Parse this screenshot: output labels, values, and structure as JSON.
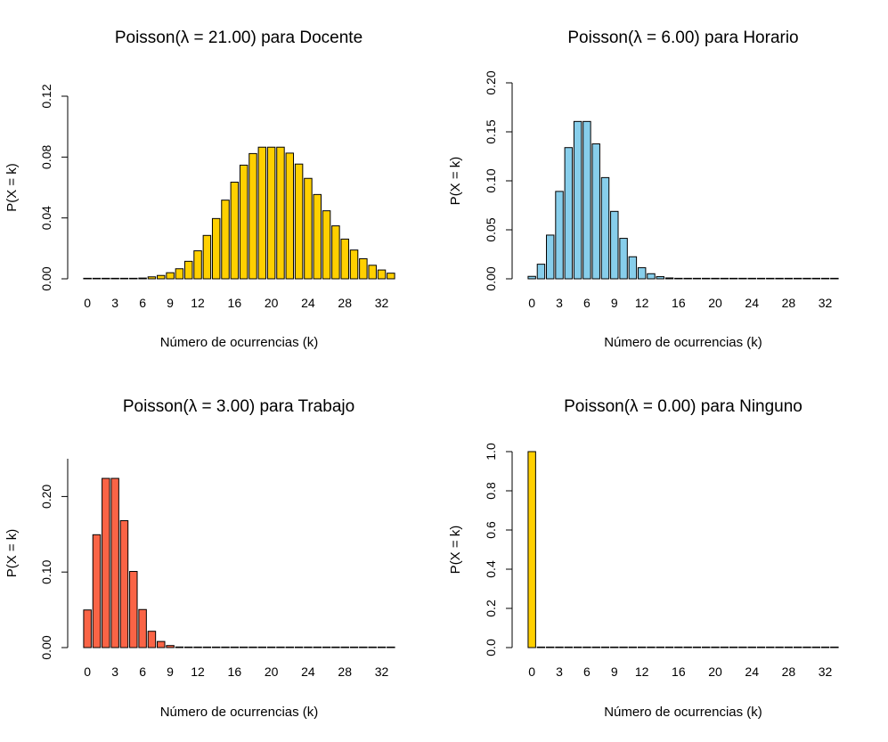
{
  "chart_data": [
    {
      "type": "bar",
      "title": "Poisson(λ = 21.00) para Docente",
      "xlabel": "Número de ocurrencias (k)",
      "ylabel": "P(X = k)",
      "color": "#FFD000",
      "ylim": [
        0,
        0.12
      ],
      "yticks": [
        "0.00",
        "0.04",
        "0.08",
        "0.12"
      ],
      "xticks": [
        "0",
        "3",
        "6",
        "9",
        "12",
        "16",
        "20",
        "24",
        "28",
        "32"
      ],
      "categories": [
        0,
        1,
        2,
        3,
        4,
        5,
        6,
        7,
        8,
        9,
        10,
        11,
        12,
        13,
        14,
        15,
        16,
        17,
        18,
        19,
        20,
        21,
        22,
        23,
        24,
        25,
        26,
        27,
        28,
        29,
        30,
        31,
        32,
        33
      ],
      "values": [
        0.0,
        0.0,
        0.0,
        0.0,
        0.0001,
        0.0002,
        0.0005,
        0.0013,
        0.0022,
        0.004,
        0.0066,
        0.0115,
        0.0184,
        0.0285,
        0.0396,
        0.0517,
        0.0635,
        0.0747,
        0.0823,
        0.0865,
        0.0865,
        0.0865,
        0.0826,
        0.0754,
        0.066,
        0.0554,
        0.0447,
        0.0348,
        0.0261,
        0.0189,
        0.0132,
        0.0089,
        0.0058,
        0.0037
      ]
    },
    {
      "type": "bar",
      "title": "Poisson(λ = 6.00) para Horario",
      "xlabel": "Número de ocurrencias (k)",
      "ylabel": "P(X = k)",
      "color": "#87CEEB",
      "ylim": [
        0,
        0.2
      ],
      "yticks": [
        "0.00",
        "0.05",
        "0.10",
        "0.15",
        "0.20"
      ],
      "xticks": [
        "0",
        "3",
        "6",
        "9",
        "12",
        "16",
        "20",
        "24",
        "28",
        "32"
      ],
      "categories": [
        0,
        1,
        2,
        3,
        4,
        5,
        6,
        7,
        8,
        9,
        10,
        11,
        12,
        13,
        14,
        15,
        16,
        17,
        18,
        19,
        20,
        21,
        22,
        23,
        24,
        25,
        26,
        27,
        28,
        29,
        30,
        31,
        32,
        33
      ],
      "values": [
        0.0025,
        0.0149,
        0.0446,
        0.0892,
        0.1339,
        0.1606,
        0.1606,
        0.1377,
        0.1033,
        0.0688,
        0.0413,
        0.0225,
        0.0113,
        0.0052,
        0.0022,
        0.0009,
        0.0003,
        0.0001,
        0.0,
        0.0,
        0.0,
        0.0,
        0.0,
        0.0,
        0.0,
        0.0,
        0.0,
        0.0,
        0.0,
        0.0,
        0.0,
        0.0,
        0.0,
        0.0
      ]
    },
    {
      "type": "bar",
      "title": "Poisson(λ = 3.00) para Trabajo",
      "xlabel": "Número de ocurrencias (k)",
      "ylabel": "P(X = k)",
      "color": "#FA6446",
      "ylim": [
        0,
        0.25
      ],
      "yticks": [
        "0.00",
        "0.10",
        "0.20"
      ],
      "xticks": [
        "0",
        "3",
        "6",
        "9",
        "12",
        "16",
        "20",
        "24",
        "28",
        "32"
      ],
      "categories": [
        0,
        1,
        2,
        3,
        4,
        5,
        6,
        7,
        8,
        9,
        10,
        11,
        12,
        13,
        14,
        15,
        16,
        17,
        18,
        19,
        20,
        21,
        22,
        23,
        24,
        25,
        26,
        27,
        28,
        29,
        30,
        31,
        32,
        33
      ],
      "values": [
        0.0498,
        0.1494,
        0.224,
        0.224,
        0.168,
        0.1008,
        0.0504,
        0.0216,
        0.0081,
        0.0027,
        0.0008,
        0.0002,
        0.0001,
        0.0,
        0.0,
        0.0,
        0.0,
        0.0,
        0.0,
        0.0,
        0.0,
        0.0,
        0.0,
        0.0,
        0.0,
        0.0,
        0.0,
        0.0,
        0.0,
        0.0,
        0.0,
        0.0,
        0.0,
        0.0
      ]
    },
    {
      "type": "bar",
      "title": "Poisson(λ = 0.00) para Ninguno",
      "xlabel": "Número de ocurrencias (k)",
      "ylabel": "P(X = k)",
      "color": "#FFD000",
      "ylim": [
        0,
        1.0
      ],
      "yticks": [
        "0.0",
        "0.2",
        "0.4",
        "0.6",
        "0.8",
        "1.0"
      ],
      "xticks": [
        "0",
        "3",
        "6",
        "9",
        "12",
        "16",
        "20",
        "24",
        "28",
        "32"
      ],
      "categories": [
        0,
        1,
        2,
        3,
        4,
        5,
        6,
        7,
        8,
        9,
        10,
        11,
        12,
        13,
        14,
        15,
        16,
        17,
        18,
        19,
        20,
        21,
        22,
        23,
        24,
        25,
        26,
        27,
        28,
        29,
        30,
        31,
        32,
        33
      ],
      "values": [
        1.0,
        0,
        0,
        0,
        0,
        0,
        0,
        0,
        0,
        0,
        0,
        0,
        0,
        0,
        0,
        0,
        0,
        0,
        0,
        0,
        0,
        0,
        0,
        0,
        0,
        0,
        0,
        0,
        0,
        0,
        0,
        0,
        0,
        0
      ]
    }
  ]
}
